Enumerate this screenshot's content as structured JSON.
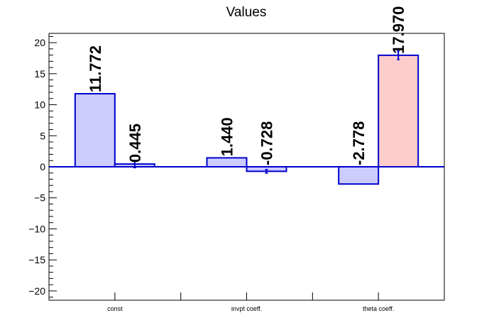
{
  "chart_data": {
    "type": "bar",
    "title": "Values",
    "xlabel": "",
    "ylabel": "",
    "categories": [
      "const",
      "invpt coeff.",
      "theta coeff."
    ],
    "ylim": [
      -21.5,
      21.5
    ],
    "yticks": [
      -20,
      -15,
      -10,
      -5,
      0,
      5,
      10,
      15,
      20
    ],
    "ytick_labels": [
      "−20",
      "−15",
      "−10",
      "−5",
      "0",
      "5",
      "10",
      "15",
      "20"
    ],
    "grid": false,
    "legend": "none",
    "bars": [
      {
        "category_index": 0,
        "slot": 0,
        "value": 11.772,
        "label": "11.772",
        "error": 0.0,
        "fill": "#ccccff"
      },
      {
        "category_index": 0,
        "slot": 1,
        "value": 0.445,
        "label": "0.445",
        "error": 0.6,
        "fill": "#ccccff"
      },
      {
        "category_index": 1,
        "slot": 0,
        "value": 1.44,
        "label": "1.440",
        "error": 0.0,
        "fill": "#ccccff"
      },
      {
        "category_index": 1,
        "slot": 1,
        "value": -0.728,
        "label": "-0.728",
        "error": 0.3,
        "fill": "#ccccff"
      },
      {
        "category_index": 2,
        "slot": 0,
        "value": -2.778,
        "label": "-2.778",
        "error": 0.0,
        "fill": "#ccccff"
      },
      {
        "category_index": 2,
        "slot": 1,
        "value": 17.97,
        "label": "17.970",
        "error": 0.7,
        "fill": "#ffcccc"
      }
    ],
    "colors": {
      "bar_edge": "#0000cc",
      "zero_line": "#0000cc",
      "axis": "#000000"
    }
  }
}
